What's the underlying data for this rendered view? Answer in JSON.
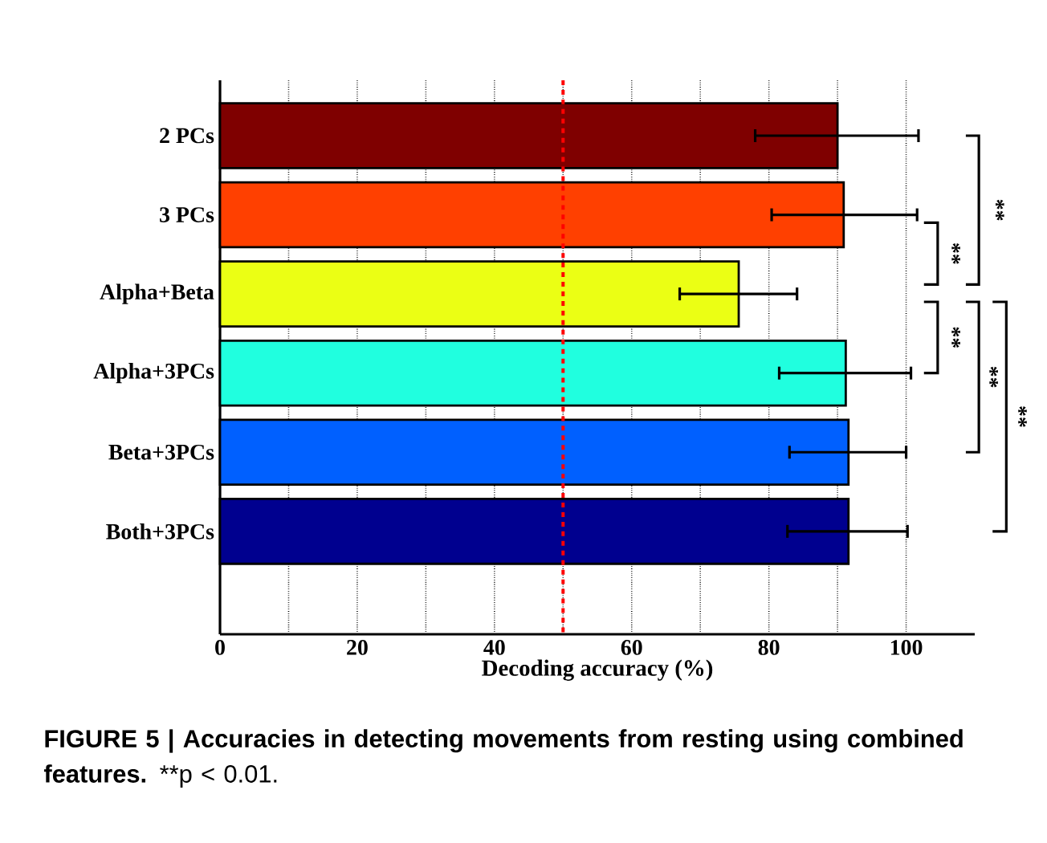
{
  "chart_data": {
    "type": "bar",
    "orientation": "horizontal",
    "xlabel": "Decoding accuracy (%)",
    "categories": [
      "2 PCs",
      "3 PCs",
      "Alpha+Beta",
      "Alpha+3PCs",
      "Beta+3PCs",
      "Both+3PCs"
    ],
    "values": [
      90.0,
      90.9,
      75.6,
      91.2,
      91.6,
      91.6
    ],
    "colors": [
      "#7f0000",
      "#ff4000",
      "#ebff14",
      "#20ffdf",
      "#0060ff",
      "#00008f"
    ],
    "errors": [
      [
        78.0,
        101.8
      ],
      [
        80.4,
        101.6
      ],
      [
        67.0,
        84.1
      ],
      [
        81.5,
        100.7
      ],
      [
        83.0,
        100.0
      ],
      [
        82.7,
        100.2
      ]
    ],
    "xlim": [
      0,
      110
    ],
    "xticks": [
      0,
      {
        "value": 10,
        "label": null
      },
      20,
      {
        "value": 30,
        "label": null
      },
      40,
      {
        "value": 50,
        "label": null
      },
      60,
      {
        "value": 70,
        "label": null
      },
      80,
      {
        "value": 90,
        "label": null
      },
      100
    ],
    "grid": "x",
    "ref_lines": [
      {
        "axis": "x",
        "value": 50,
        "color": "#ff0000",
        "line_style": "dashed"
      }
    ],
    "annotations": [
      "**",
      "**",
      "**",
      "**",
      "**",
      "FIGURE 5 | Accuracies in detecting movements from resting using combined features.",
      "**p < 0.01."
    ]
  }
}
